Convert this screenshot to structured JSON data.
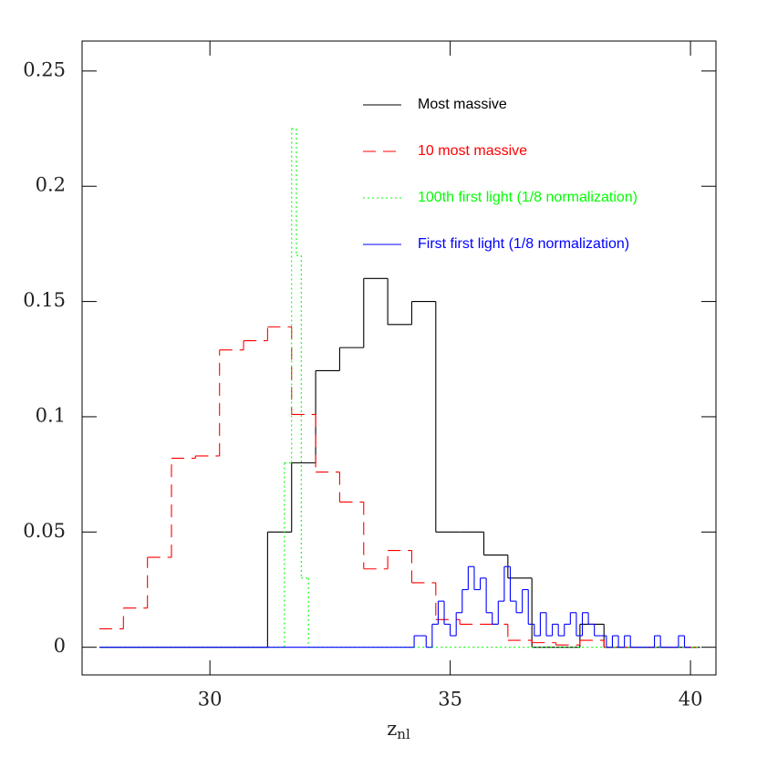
{
  "chart_data": {
    "type": "step",
    "x_label": {
      "text": "z",
      "sub": "nl"
    },
    "xlim": [
      27.34,
      40.53
    ],
    "ylim": [
      -0.012,
      0.263
    ],
    "xticks": [
      30,
      35,
      40
    ],
    "yticks": [
      0,
      0.05,
      0.1,
      0.15,
      0.2,
      0.25
    ],
    "series": [
      {
        "name": "Most massive",
        "color": "#000000",
        "dash": "solid",
        "bins": [
          27.7,
          31.2,
          31.7,
          32.2,
          32.7,
          33.2,
          33.7,
          34.2,
          34.7,
          35.2,
          35.7,
          36.2,
          36.7,
          37.2,
          37.7,
          38.2,
          40.2
        ],
        "values": [
          0,
          0.05,
          0.08,
          0.12,
          0.13,
          0.16,
          0.14,
          0.15,
          0.05,
          0.05,
          0.04,
          0.03,
          0,
          0,
          0.01,
          0
        ]
      },
      {
        "name": "10 most massive",
        "color": "#ff0000",
        "dash": "dashed",
        "bins": [
          27.7,
          28.2,
          28.7,
          29.2,
          29.7,
          30.2,
          30.7,
          31.2,
          31.7,
          32.2,
          32.7,
          33.2,
          33.7,
          34.2,
          34.7,
          35.2,
          35.7,
          36.2,
          36.7,
          37.2,
          37.7,
          38.2,
          40.2
        ],
        "values": [
          0.008,
          0.017,
          0.039,
          0.082,
          0.083,
          0.129,
          0.133,
          0.139,
          0.101,
          0.076,
          0.063,
          0.034,
          0.042,
          0.028,
          0.012,
          0.01,
          0.01,
          0.003,
          0.002,
          0.001,
          0.003,
          0
        ]
      },
      {
        "name": "100th first light (1/8 normalization)",
        "color": "#00ff00",
        "dash": "dotted",
        "bins": [
          27.7,
          31.55,
          31.7,
          31.8,
          31.9,
          32.05,
          40.2
        ],
        "values": [
          0,
          0.08,
          0.225,
          0.17,
          0.03,
          0
        ]
      },
      {
        "name": "First first light (1/8 normalization)",
        "color": "#0000ff",
        "dash": "solid",
        "bins": [
          27.7,
          34.25,
          34.375,
          34.5,
          34.625,
          34.75,
          34.875,
          35.0,
          35.125,
          35.25,
          35.375,
          35.5,
          35.625,
          35.75,
          35.875,
          36.0,
          36.125,
          36.25,
          36.375,
          36.5,
          36.625,
          36.75,
          36.875,
          37.0,
          37.125,
          37.25,
          37.375,
          37.5,
          37.625,
          37.75,
          37.875,
          38.0,
          38.125,
          38.25,
          38.375,
          38.5,
          38.625,
          38.75,
          38.875,
          39.0,
          39.125,
          39.25,
          39.375,
          39.5,
          39.625,
          39.75,
          39.875,
          40.0
        ],
        "values": [
          0,
          0.005,
          0.005,
          0,
          0.01,
          0.02,
          0.01,
          0.005,
          0.015,
          0.025,
          0.035,
          0.025,
          0.03,
          0.015,
          0.01,
          0.02,
          0.035,
          0.02,
          0.015,
          0.025,
          0.01,
          0.005,
          0.015,
          0.005,
          0.01,
          0.005,
          0.01,
          0.015,
          0.005,
          0.015,
          0.01,
          0.005,
          0.005,
          0,
          0.005,
          0,
          0.005,
          0,
          0,
          0,
          0,
          0.005,
          0,
          0,
          0,
          0.005,
          0
        ]
      }
    ]
  }
}
